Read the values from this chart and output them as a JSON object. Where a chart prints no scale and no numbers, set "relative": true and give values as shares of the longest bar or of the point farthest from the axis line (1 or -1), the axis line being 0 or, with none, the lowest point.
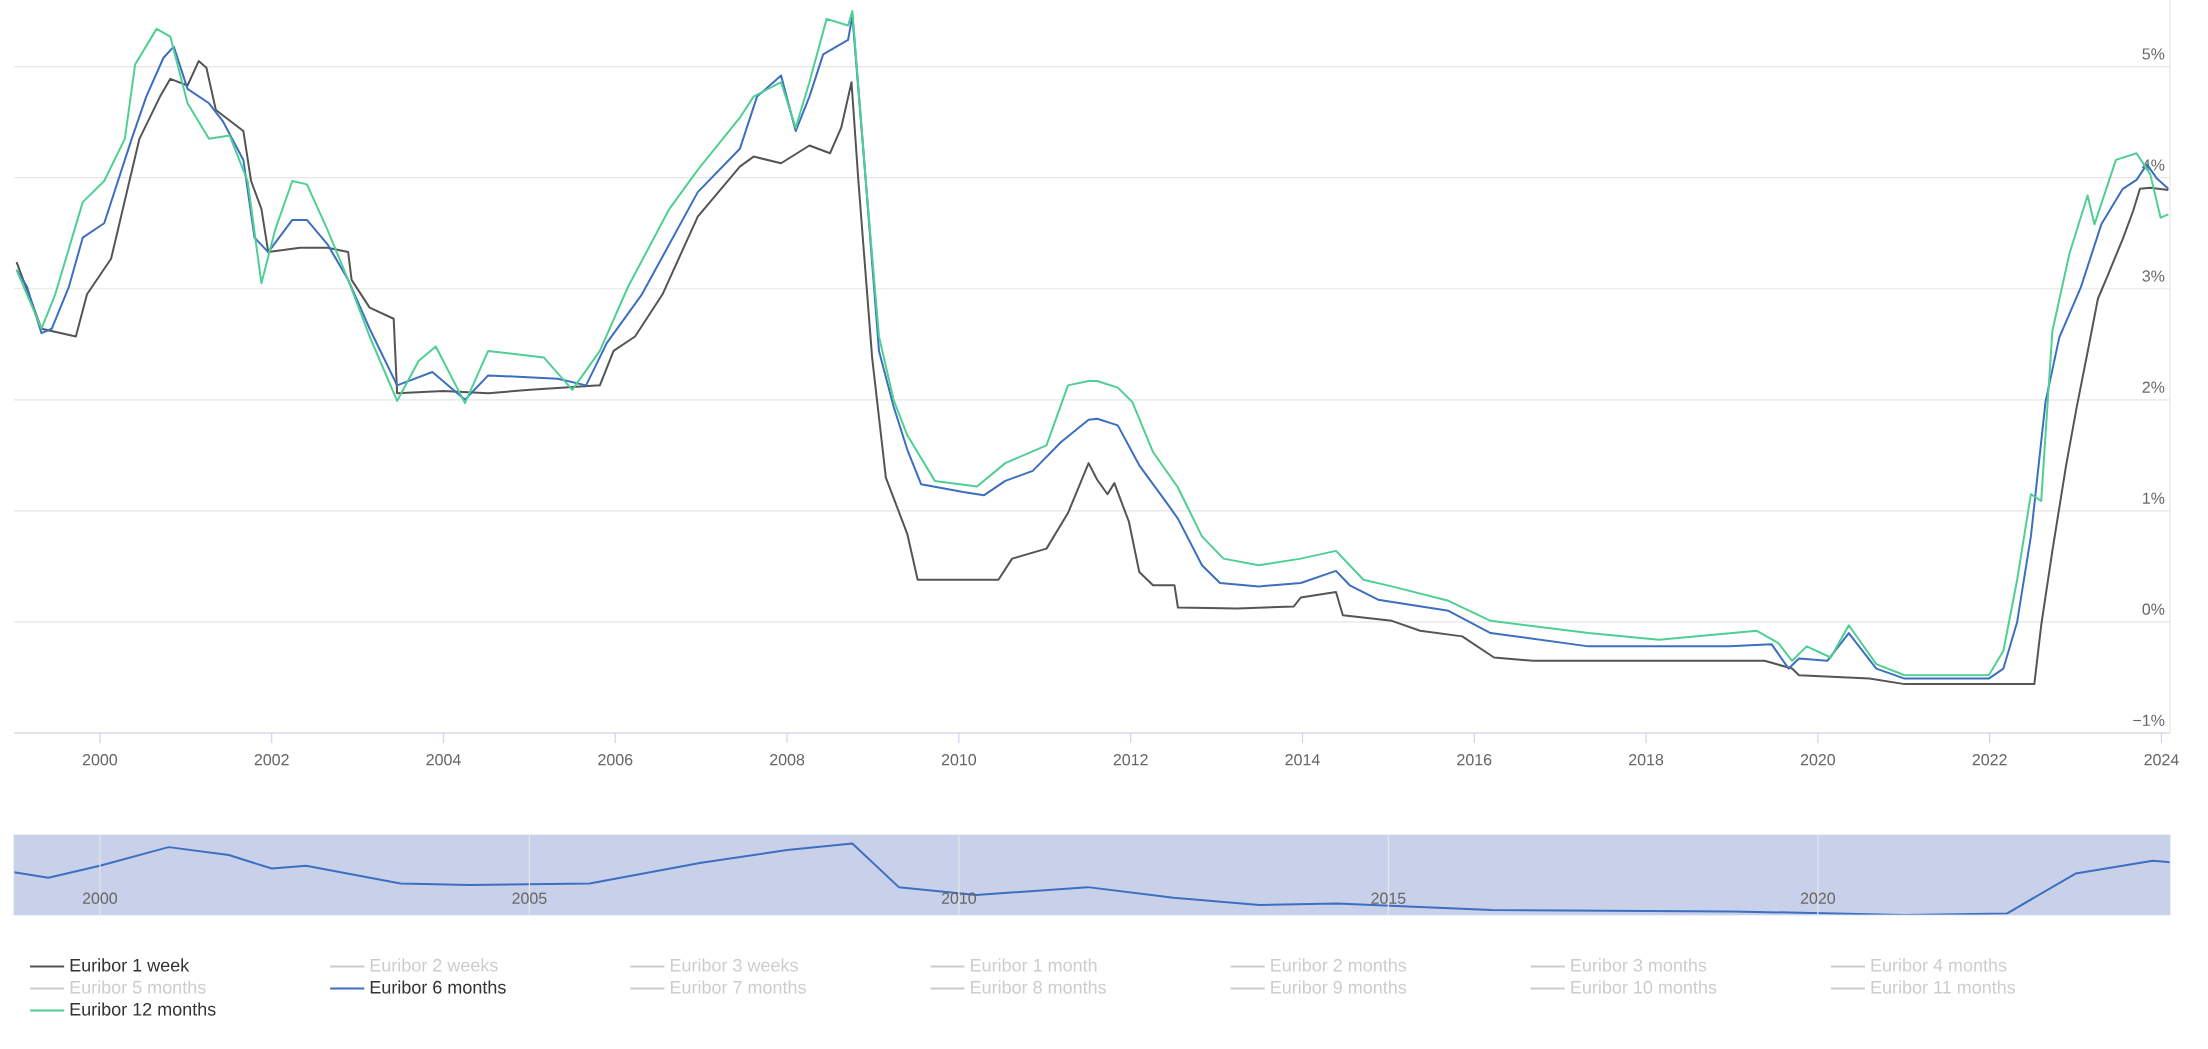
{
  "chart_data": [
    {
      "type": "line",
      "xlim": [
        1999,
        2024.1
      ],
      "xticks": [
        2000,
        2002,
        2004,
        2006,
        2008,
        2010,
        2012,
        2014,
        2016,
        2018,
        2020,
        2022,
        2024
      ],
      "ylim": [
        -1,
        5.6
      ],
      "yticks": [
        {
          "value": -1,
          "label": "−1%"
        },
        {
          "value": 0,
          "label": "0%"
        },
        {
          "value": 1,
          "label": "1%"
        },
        {
          "value": 2,
          "label": "2%"
        },
        {
          "value": 3,
          "label": "3%"
        },
        {
          "value": 4,
          "label": "4%"
        },
        {
          "value": 5,
          "label": "5%"
        }
      ],
      "grid": "y",
      "legend": "bottom",
      "marker": "none",
      "line_style": "solid",
      "series": [
        {
          "name": "Euribor 1 week",
          "color": "#555555",
          "x": [
            1999.03,
            1999.32,
            1999.72,
            1999.85,
            2000.13,
            2000.46,
            2000.7,
            2000.82,
            2001.02,
            2001.15,
            2001.24,
            2001.35,
            2001.67,
            2001.76,
            2001.88,
            2001.96,
            2002.33,
            2002.65,
            2002.89,
            2002.93,
            2003.14,
            2003.42,
            2003.46,
            2004.0,
            2004.52,
            2005.01,
            2005.82,
            2005.98,
            2006.23,
            2006.55,
            2006.96,
            2007.45,
            2007.61,
            2007.93,
            2008.26,
            2008.5,
            2008.63,
            2008.75,
            2008.83,
            2008.99,
            2009.15,
            2009.4,
            2009.52,
            2009.97,
            2010.46,
            2010.62,
            2011.02,
            2011.27,
            2011.51,
            2011.61,
            2011.73,
            2011.81,
            2011.98,
            2012.1,
            2012.26,
            2012.51,
            2012.55,
            2013.24,
            2013.9,
            2013.98,
            2014.39,
            2014.47,
            2015.04,
            2015.37,
            2015.86,
            2016.23,
            2016.68,
            2019.38,
            2019.7,
            2019.78,
            2020.6,
            2021.01,
            2022.52,
            2022.6,
            2022.73,
            2022.89,
            2023.01,
            2023.14,
            2023.26,
            2023.38,
            2023.55,
            2023.67,
            2023.75,
            2023.87,
            2024.08
          ],
          "values": [
            3.24,
            2.64,
            2.57,
            2.95,
            3.27,
            4.35,
            4.73,
            4.89,
            4.83,
            5.05,
            4.99,
            4.61,
            4.42,
            3.97,
            3.72,
            3.33,
            3.37,
            3.37,
            3.33,
            3.08,
            2.83,
            2.73,
            2.06,
            2.08,
            2.06,
            2.09,
            2.13,
            2.44,
            2.57,
            2.95,
            3.65,
            4.1,
            4.19,
            4.13,
            4.29,
            4.22,
            4.45,
            4.86,
            3.97,
            2.38,
            1.3,
            0.79,
            0.38,
            0.38,
            0.38,
            0.57,
            0.66,
            0.98,
            1.43,
            1.28,
            1.15,
            1.25,
            0.9,
            0.45,
            0.33,
            0.33,
            0.13,
            0.12,
            0.14,
            0.22,
            0.27,
            0.06,
            0.01,
            -0.08,
            -0.13,
            -0.32,
            -0.35,
            -0.35,
            -0.42,
            -0.48,
            -0.51,
            -0.56,
            -0.56,
            -0.03,
            0.64,
            1.41,
            1.92,
            2.43,
            2.91,
            3.13,
            3.45,
            3.7,
            3.9,
            3.91,
            3.89
          ]
        },
        {
          "name": "Euribor 2 weeks",
          "color": "#cccccc"
        },
        {
          "name": "Euribor 3 weeks",
          "color": "#cccccc"
        },
        {
          "name": "Euribor 1 month",
          "color": "#cccccc"
        },
        {
          "name": "Euribor 2 months",
          "color": "#cccccc"
        },
        {
          "name": "Euribor 3 months",
          "color": "#cccccc"
        },
        {
          "name": "Euribor 4 months",
          "color": "#cccccc"
        },
        {
          "name": "Euribor 5 months",
          "color": "#cccccc"
        },
        {
          "name": "Euribor 6 months",
          "color": "#3c6fc0",
          "x": [
            1999.03,
            1999.15,
            1999.32,
            1999.44,
            1999.64,
            1999.8,
            2000.05,
            2000.37,
            2000.54,
            2000.74,
            2000.86,
            2001.02,
            2001.27,
            2001.43,
            2001.67,
            2001.8,
            2001.96,
            2002.24,
            2002.41,
            2002.65,
            2002.89,
            2003.14,
            2003.46,
            2003.87,
            2004.25,
            2004.52,
            2005.33,
            2005.66,
            2005.9,
            2006.31,
            2006.96,
            2007.45,
            2007.65,
            2007.93,
            2008.1,
            2008.26,
            2008.42,
            2008.71,
            2008.76,
            2008.91,
            2009.07,
            2009.24,
            2009.4,
            2009.56,
            2010.05,
            2010.29,
            2010.54,
            2010.86,
            2011.19,
            2011.51,
            2011.61,
            2011.85,
            2012.1,
            2012.43,
            2012.55,
            2012.83,
            2013.04,
            2013.49,
            2013.98,
            2014.39,
            2014.55,
            2014.88,
            2015.7,
            2016.19,
            2017.33,
            2018.97,
            2019.46,
            2019.66,
            2019.78,
            2020.11,
            2020.36,
            2020.68,
            2021.01,
            2021.99,
            2022.16,
            2022.32,
            2022.48,
            2022.65,
            2022.81,
            2023.06,
            2023.3,
            2023.55,
            2023.71,
            2023.83,
            2023.95,
            2024.08
          ],
          "values": [
            3.17,
            3.02,
            2.6,
            2.64,
            3.02,
            3.46,
            3.59,
            4.35,
            4.73,
            5.08,
            5.18,
            4.8,
            4.67,
            4.51,
            4.16,
            3.46,
            3.33,
            3.62,
            3.62,
            3.4,
            3.08,
            2.64,
            2.13,
            2.25,
            2.0,
            2.22,
            2.19,
            2.13,
            2.51,
            2.95,
            3.87,
            4.26,
            4.73,
            4.92,
            4.42,
            4.73,
            5.11,
            5.24,
            5.46,
            4.03,
            2.44,
            1.94,
            1.55,
            1.24,
            1.17,
            1.14,
            1.27,
            1.36,
            1.62,
            1.82,
            1.83,
            1.77,
            1.41,
            1.06,
            0.93,
            0.51,
            0.35,
            0.32,
            0.35,
            0.46,
            0.33,
            0.2,
            0.1,
            -0.1,
            -0.22,
            -0.22,
            -0.2,
            -0.42,
            -0.33,
            -0.35,
            -0.1,
            -0.42,
            -0.51,
            -0.51,
            -0.42,
            0.0,
            0.77,
            1.98,
            2.56,
            3.01,
            3.58,
            3.9,
            3.98,
            4.12,
            3.99,
            3.9
          ]
        },
        {
          "name": "Euribor 7 months",
          "color": "#cccccc"
        },
        {
          "name": "Euribor 8 months",
          "color": "#cccccc"
        },
        {
          "name": "Euribor 9 months",
          "color": "#cccccc"
        },
        {
          "name": "Euribor 10 months",
          "color": "#cccccc"
        },
        {
          "name": "Euribor 11 months",
          "color": "#cccccc"
        },
        {
          "name": "Euribor 12 months",
          "color": "#4fcf94",
          "x": [
            1999.03,
            1999.32,
            1999.48,
            1999.8,
            2000.05,
            2000.29,
            2000.41,
            2000.66,
            2000.82,
            2001.02,
            2001.27,
            2001.51,
            2001.72,
            2001.88,
            2002.04,
            2002.24,
            2002.41,
            2002.65,
            2002.89,
            2003.14,
            2003.46,
            2003.71,
            2003.91,
            2004.25,
            2004.52,
            2005.17,
            2005.5,
            2005.82,
            2006.15,
            2006.63,
            2006.96,
            2007.45,
            2007.61,
            2007.93,
            2008.1,
            2008.26,
            2008.46,
            2008.71,
            2008.76,
            2008.91,
            2009.07,
            2009.24,
            2009.4,
            2009.72,
            2010.21,
            2010.54,
            2011.02,
            2011.27,
            2011.51,
            2011.61,
            2011.85,
            2012.02,
            2012.26,
            2012.55,
            2012.83,
            2013.08,
            2013.49,
            2013.98,
            2014.39,
            2014.71,
            2015.04,
            2015.7,
            2016.19,
            2017.33,
            2018.15,
            2019.29,
            2019.54,
            2019.7,
            2019.87,
            2020.15,
            2020.36,
            2020.68,
            2021.01,
            2021.99,
            2022.16,
            2022.32,
            2022.48,
            2022.6,
            2022.73,
            2022.93,
            2023.14,
            2023.22,
            2023.47,
            2023.71,
            2023.87,
            2023.99,
            2024.08
          ],
          "values": [
            3.17,
            2.64,
            2.95,
            3.78,
            3.97,
            4.35,
            5.02,
            5.34,
            5.27,
            4.67,
            4.35,
            4.38,
            3.97,
            3.05,
            3.53,
            3.97,
            3.94,
            3.53,
            3.08,
            2.57,
            1.99,
            2.35,
            2.48,
            1.97,
            2.44,
            2.38,
            2.09,
            2.44,
            3.02,
            3.72,
            4.07,
            4.54,
            4.73,
            4.86,
            4.45,
            4.86,
            5.43,
            5.37,
            5.5,
            4.03,
            2.57,
            2.0,
            1.68,
            1.27,
            1.22,
            1.43,
            1.59,
            2.13,
            2.17,
            2.17,
            2.11,
            1.98,
            1.53,
            1.21,
            0.77,
            0.57,
            0.51,
            0.57,
            0.64,
            0.38,
            0.32,
            0.19,
            0.01,
            -0.1,
            -0.16,
            -0.08,
            -0.19,
            -0.35,
            -0.22,
            -0.32,
            -0.03,
            -0.38,
            -0.48,
            -0.48,
            -0.26,
            0.38,
            1.15,
            1.09,
            2.62,
            3.32,
            3.84,
            3.58,
            4.16,
            4.22,
            4.03,
            3.64,
            3.67
          ]
        }
      ]
    },
    {
      "type": "line",
      "relative": true,
      "xlim": [
        1999,
        2024.1
      ],
      "xticks": [
        2000,
        2005,
        2010,
        2015,
        2020
      ],
      "grid": "x",
      "marker": "none",
      "line_style": "solid",
      "series": [
        {
          "color": "#3c6fc0",
          "x": [
            1999.0,
            1999.4,
            2000.0,
            2000.8,
            2001.5,
            2002.0,
            2002.4,
            2003.5,
            2004.3,
            2005.7,
            2007.0,
            2008.0,
            2008.76,
            2009.3,
            2010.2,
            2011.5,
            2012.5,
            2013.5,
            2014.4,
            2016.2,
            2019.0,
            2021.0,
            2022.2,
            2023.0,
            2023.9,
            2024.1
          ],
          "values": [
            0.6,
            0.52,
            0.69,
            0.95,
            0.84,
            0.65,
            0.69,
            0.44,
            0.42,
            0.44,
            0.73,
            0.91,
            1.0,
            0.39,
            0.28,
            0.39,
            0.24,
            0.14,
            0.16,
            0.07,
            0.05,
            0.0,
            0.02,
            0.58,
            0.76,
            0.74
          ]
        }
      ]
    }
  ]
}
